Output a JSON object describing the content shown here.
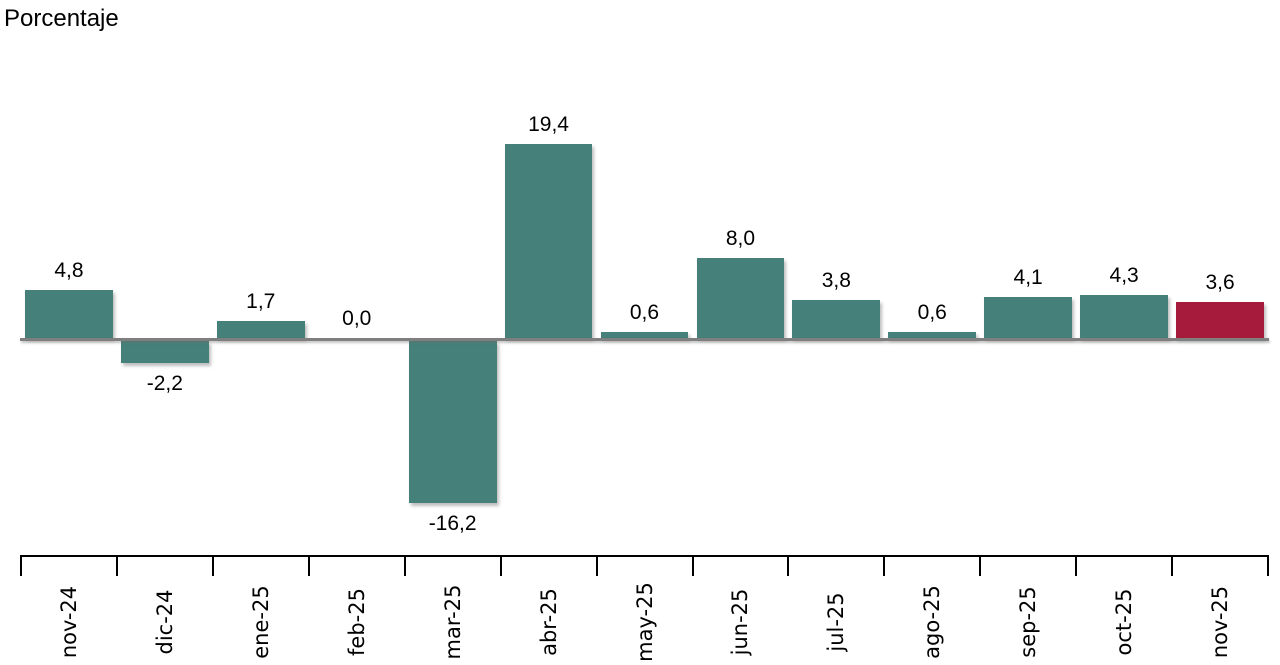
{
  "chart_data": {
    "type": "bar",
    "title": "Porcentaje",
    "categories": [
      "nov-24",
      "dic-24",
      "ene-25",
      "feb-25",
      "mar-25",
      "abr-25",
      "may-25",
      "jun-25",
      "jul-25",
      "ago-25",
      "sep-25",
      "oct-25",
      "nov-25"
    ],
    "values": [
      4.8,
      -2.2,
      1.7,
      0.0,
      -16.2,
      19.4,
      0.6,
      8.0,
      3.8,
      0.6,
      4.1,
      4.3,
      3.6
    ],
    "value_labels": [
      "4,8",
      "-2,2",
      "1,7",
      "0,0",
      "-16,2",
      "19,4",
      "0,6",
      "8,0",
      "3,8",
      "0,6",
      "4,1",
      "4,3",
      "3,6"
    ],
    "highlight_index": 12,
    "colors": {
      "bar": "#45807A",
      "highlight_bar": "#A61A3B",
      "zero_line": "#7F7F7F",
      "axis": "#000000",
      "text": "#000000"
    },
    "xlabel": "",
    "ylabel": "Porcentaje",
    "ylim": [
      -18,
      21
    ],
    "grid": "off",
    "legend": "none",
    "decimal_separator": ",",
    "x_axis_label_rotation": -90
  }
}
